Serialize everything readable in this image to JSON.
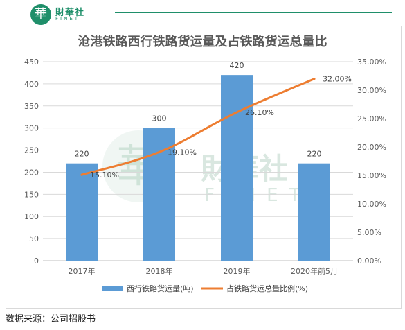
{
  "logo": {
    "badge_glyph": "華",
    "name": "財華社",
    "sub": "FINET"
  },
  "watermark": {
    "glyph": "華",
    "name": "財華社",
    "sub": "FINET"
  },
  "source": "数据来源：公司招股书",
  "chart_data": {
    "type": "bar+line",
    "title": "沧港铁路西行铁路货运量及占铁路货运总量比",
    "categories": [
      "2017年",
      "2018年",
      "2019年",
      "2020年前5月"
    ],
    "series": [
      {
        "name": "西行铁路货运量(吨)",
        "type": "bar",
        "axis": "left",
        "color": "#5b9bd5",
        "values": [
          220,
          300,
          420,
          220
        ],
        "labels": [
          "220",
          "300",
          "420",
          "220"
        ]
      },
      {
        "name": "占铁路货运总量比例(%)",
        "type": "line",
        "axis": "right",
        "color": "#ed7d31",
        "values": [
          15.1,
          19.1,
          26.1,
          32.0
        ],
        "labels": [
          "15.10%",
          "19.10%",
          "26.10%",
          "32.00%"
        ]
      }
    ],
    "left_axis": {
      "min": 0,
      "max": 450,
      "step": 50,
      "ticks": [
        "0",
        "50",
        "100",
        "150",
        "200",
        "250",
        "300",
        "350",
        "400",
        "450"
      ]
    },
    "right_axis": {
      "min": 0,
      "max": 35,
      "step": 5,
      "ticks": [
        "0.00%",
        "5.00%",
        "10.00%",
        "15.00%",
        "20.00%",
        "25.00%",
        "30.00%",
        "35.00%"
      ]
    },
    "grid": true,
    "legend_position": "bottom"
  }
}
